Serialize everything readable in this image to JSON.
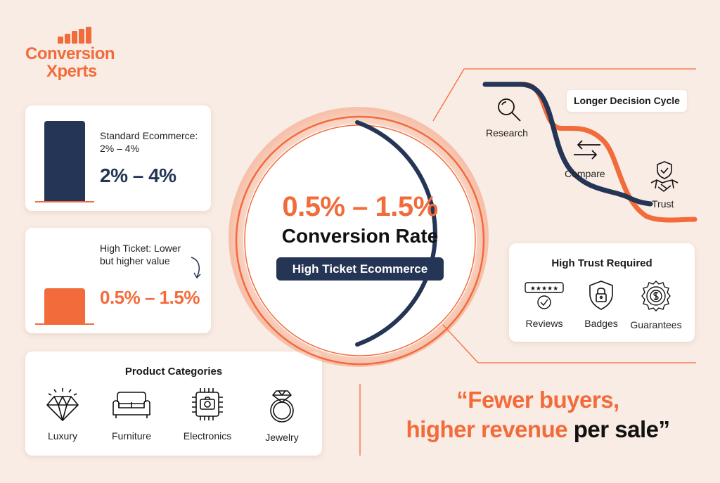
{
  "brand": {
    "line1": "Conversion",
    "line2": "Xperts",
    "color": "#f26b3a"
  },
  "colors": {
    "orange": "#f26b3a",
    "navy": "#253556",
    "background": "#f9ece4"
  },
  "standard_card": {
    "label": "Standard Ecommerce: 2% – 4%",
    "value": "2% – 4%"
  },
  "high_ticket_card": {
    "label": "High Ticket: Lower but higher value",
    "value": "0.5% – 1.5%"
  },
  "categories": {
    "title": "Product Categories",
    "items": [
      {
        "label": "Luxury",
        "icon": "diamond-icon"
      },
      {
        "label": "Furniture",
        "icon": "sofa-icon"
      },
      {
        "label": "Electronics",
        "icon": "chip-camera-icon"
      },
      {
        "label": "Jewelry",
        "icon": "ring-icon"
      }
    ]
  },
  "center": {
    "rate": "0.5% – 1.5%",
    "label": "Conversion Rate",
    "pill": "High Ticket Ecommerce"
  },
  "decision_cycle": {
    "title": "Longer Decision Cycle",
    "steps": [
      {
        "label": "Research",
        "icon": "magnifier-icon"
      },
      {
        "label": "Compare",
        "icon": "swap-arrows-icon"
      },
      {
        "label": "Trust",
        "icon": "handshake-shield-icon"
      }
    ]
  },
  "trust": {
    "title": "High Trust Required",
    "items": [
      {
        "label": "Reviews",
        "icon": "stars-review-icon"
      },
      {
        "label": "Badges",
        "icon": "lock-shield-icon"
      },
      {
        "label": "Guarantees",
        "icon": "guarantee-seal-icon"
      }
    ]
  },
  "quote": {
    "open": "“",
    "part1": "Fewer buyers,",
    "part2": "higher revenue",
    "part3": " per sale",
    "close": "”"
  }
}
